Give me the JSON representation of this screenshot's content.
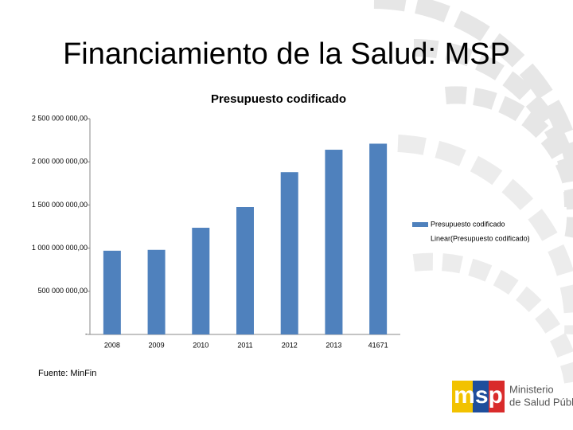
{
  "slide": {
    "title": "Financiamiento de la Salud: MSP",
    "source": "Fuente: MinFin",
    "logo": {
      "mark": "msp",
      "line1": "Ministerio",
      "line2": "de Salud Pública"
    }
  },
  "chart_data": {
    "type": "bar",
    "title": "Presupuesto codificado",
    "categories": [
      "2008",
      "2009",
      "2010",
      "2011",
      "2012",
      "2013",
      "41671"
    ],
    "series": [
      {
        "name": "Presupuesto codificado",
        "color": "#4f81bd",
        "values": [
          970000000,
          980000000,
          1236000000,
          1476000000,
          1880000000,
          2140000000,
          2210000000
        ]
      }
    ],
    "trendline": {
      "name": "Linear(Presupuesto codificado)"
    },
    "ylim": [
      0,
      2500000000
    ],
    "yticks": [
      {
        "value": 0,
        "label": "-"
      },
      {
        "value": 500000000,
        "label": "500 000 000,00"
      },
      {
        "value": 1000000000,
        "label": "1 000 000 000,00"
      },
      {
        "value": 1500000000,
        "label": "1 500 000 000,00"
      },
      {
        "value": 2000000000,
        "label": "2 000 000 000,00"
      },
      {
        "value": 2500000000,
        "label": "2 500 000 000,00"
      }
    ],
    "grid": false,
    "legend": "right"
  }
}
